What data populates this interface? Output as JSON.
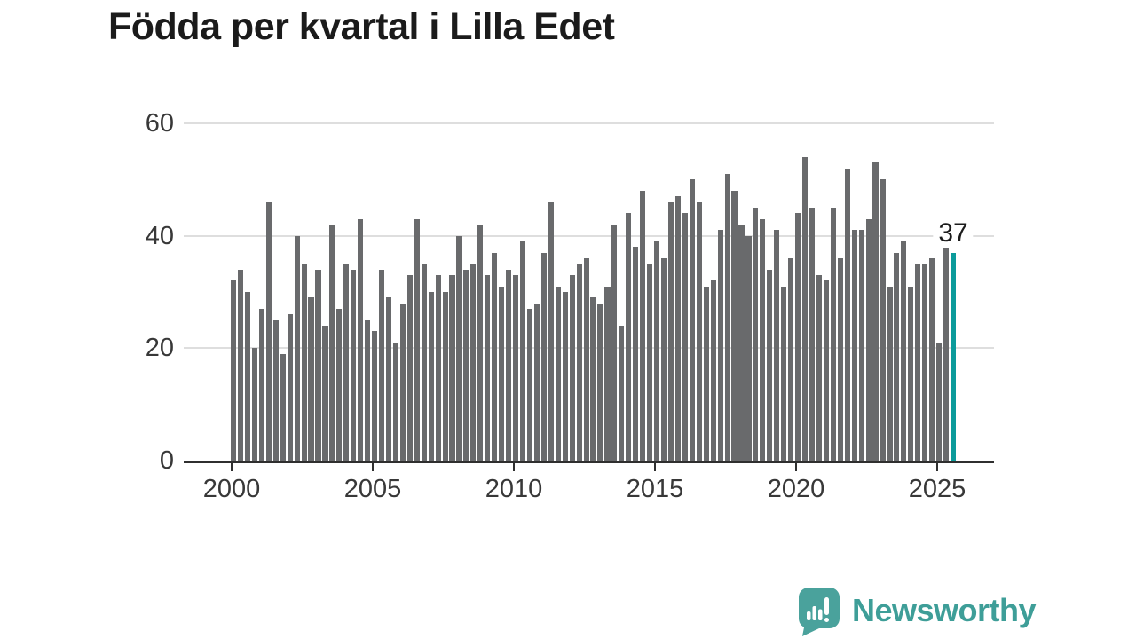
{
  "title": "Födda per kvartal i Lilla Edet",
  "annotation": {
    "last_value_label": "37"
  },
  "branding": {
    "wordmark": "Newsworthy"
  },
  "colors": {
    "bar": "#696a6c",
    "highlight": "#0c9b9b",
    "brand": "#3e9e98",
    "grid": "#dedede",
    "axis": "#2f2f2f",
    "tick_text": "#383838",
    "title_text": "#1b1b1b"
  },
  "chart_data": {
    "type": "bar",
    "title": "Födda per kvartal i Lilla Edet",
    "x_start": "2000-Q1",
    "x_end": "2025-Q3",
    "x_interval": "quarter",
    "x_tick_labels": [
      "2000",
      "2005",
      "2010",
      "2015",
      "2020",
      "2025"
    ],
    "y_ticks": [
      0,
      20,
      40,
      60
    ],
    "ylim": [
      0,
      60
    ],
    "grid": "horizontal",
    "legend": "none",
    "series": [
      {
        "name": "Födda per kvartal",
        "values": [
          32,
          34,
          30,
          20,
          27,
          46,
          25,
          19,
          26,
          40,
          35,
          29,
          34,
          24,
          42,
          27,
          35,
          34,
          43,
          25,
          23,
          34,
          29,
          21,
          28,
          33,
          43,
          35,
          30,
          33,
          30,
          33,
          40,
          34,
          35,
          42,
          33,
          37,
          31,
          34,
          33,
          39,
          27,
          28,
          37,
          46,
          31,
          30,
          33,
          35,
          36,
          29,
          28,
          31,
          42,
          24,
          44,
          38,
          48,
          35,
          39,
          36,
          46,
          47,
          44,
          50,
          46,
          31,
          32,
          41,
          51,
          48,
          42,
          40,
          45,
          43,
          34,
          41,
          31,
          36,
          44,
          54,
          45,
          33,
          32,
          45,
          36,
          52,
          41,
          41,
          43,
          53,
          50,
          31,
          37,
          39,
          31,
          35,
          35,
          36,
          21,
          39,
          37
        ]
      }
    ],
    "highlight_last": {
      "index": 102,
      "quarter": "2025-Q3",
      "value": 37
    }
  }
}
